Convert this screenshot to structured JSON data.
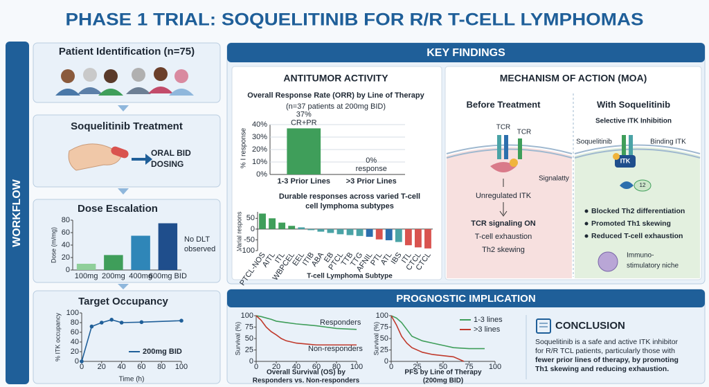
{
  "title": "PHASE 1 TRIAL: SOQUELITINIB FOR R/R T-CELL LYMPHOMAS",
  "workflow_label": "WORKFLOW",
  "patient_step": "Patient Identification (n=75)",
  "treatment_step": {
    "title": "Soquelitinib Treatment",
    "note_lines": [
      "ORAL BID",
      "DOSING"
    ]
  },
  "key_findings_header": "KEY FINDINGS",
  "antitumor_header": "ANTITUMOR ACTIVITY",
  "moa": {
    "header": "MECHANISM OF ACTION (MOA)",
    "before": {
      "title": "Before Treatment",
      "receptor_labels": [
        "TCR",
        "TCR"
      ],
      "signal": "Signalatty",
      "itk": "Unregulated ITK",
      "effects": [
        "TCR signaling ON",
        "T-cell exhaustion",
        "Th2 skewing"
      ]
    },
    "after": {
      "title": "With Soquelitinib",
      "subtitle": "Selective ITK Inhibition",
      "drug": "Soquelitinib",
      "binding": "Binding ITK",
      "itk": "ITK",
      "fragment": "12",
      "effects": [
        "Blocked Th2 differentiation",
        "Promoted Th1 skewing",
        "Reduced T-cell exhaustion"
      ],
      "niche_lines": [
        "Immuno-",
        "stimulatory niche"
      ]
    }
  },
  "prognostic_header": "PROGNOSTIC IMPLICATION",
  "conclusion": {
    "title": "CONCLUSION",
    "lines": [
      "Soquelitinib is a safe and active ITK inhibitor",
      "for R/R TCL patients, particularly those with"
    ],
    "emphasis_lines": [
      "fewer prior lines of therapy, by promoting",
      "Th1 skewing and reducing exhaustion."
    ]
  },
  "chart_data": [
    {
      "type": "bar",
      "title": "Dose Escalation",
      "y_label": "Dose (m/mg)",
      "categories": [
        "100mg",
        "200mg",
        "400mg",
        "600mg BID"
      ],
      "values": [
        10,
        24,
        55,
        75
      ],
      "colors": [
        "#8fcf9a",
        "#3f9e5a",
        "#2f86b8",
        "#1f4e8c"
      ],
      "ylim": [
        0,
        80
      ],
      "yticks": [
        0,
        20,
        40,
        60,
        80
      ],
      "grid": false,
      "annotation_lines": [
        "No DLT",
        "observed"
      ]
    },
    {
      "type": "line",
      "title": "Target Occupancy",
      "y_label": "% ITK occupancy",
      "x_label": "Time (h)",
      "x": [
        0,
        10,
        20,
        30,
        40,
        60,
        100
      ],
      "series": [
        {
          "name": "200mg BID",
          "color": "#1f5f99",
          "values": [
            0,
            72,
            80,
            86,
            80,
            81,
            84
          ]
        }
      ],
      "xlim": [
        0,
        100
      ],
      "xticks": [
        0,
        20,
        40,
        60,
        80,
        100
      ],
      "ylim": [
        0,
        100
      ],
      "yticks": [
        0,
        20,
        40,
        60,
        80,
        100
      ],
      "grid": false,
      "markers": true
    },
    {
      "type": "bar",
      "title": "Overall Response Rate (ORR) by Line of Therapy",
      "subtitle": "(n=37 patients at 200mg BID)",
      "y_label": "% I response",
      "categories": [
        "1-3 Prior Lines",
        ">3 Prior Lines"
      ],
      "values": [
        37,
        0
      ],
      "value_labels": [
        "37%",
        "0%"
      ],
      "value_notes": [
        "CR+PR",
        "response"
      ],
      "color": "#3f9e5a",
      "ylim": [
        0,
        40
      ],
      "yticks": [
        {
          "value": 0,
          "label": "0%"
        },
        {
          "value": 10,
          "label": "10%"
        },
        {
          "value": 20,
          "label": "20%"
        },
        {
          "value": 30,
          "label": "30%"
        },
        {
          "value": 40,
          "label": "40%"
        }
      ],
      "grid": true
    },
    {
      "type": "bar",
      "title_lines": [
        "Durable responses across varied T-cell",
        "cell lymphoma subtypes"
      ],
      "y_label": "Varial respons",
      "x_label": "T-cell Lymphoma Subtype",
      "categories": [
        "PTCL-NOS",
        "AITL",
        "ITL",
        "WBPCEL",
        "EEL",
        "ITIB",
        "ABA",
        "EB",
        "PTCL",
        "TTB",
        "TTG",
        "AFNIL",
        "PTL",
        "ATL",
        "IBS",
        "ITL",
        "CTCL",
        "CTCL"
      ],
      "values": [
        72,
        50,
        30,
        15,
        8,
        -5,
        -12,
        -18,
        -24,
        -28,
        -32,
        -36,
        -48,
        -52,
        -60,
        -75,
        -85,
        -90
      ],
      "colors": [
        "#3f9e5a",
        "#3f9e5a",
        "#3f9e5a",
        "#3f9e5a",
        "#4aa3a6",
        "#4aa3a6",
        "#4aa3a6",
        "#4aa3a6",
        "#4aa3a6",
        "#4aa3a6",
        "#4aa3a6",
        "#2c6fad",
        "#d9534f",
        "#2c6fad",
        "#4aa3a6",
        "#d9534f",
        "#d9534f",
        "#d9534f"
      ],
      "ylim": [
        -100,
        80
      ],
      "yticks": [
        -100,
        -50,
        0,
        50
      ],
      "grid": false
    },
    {
      "type": "line",
      "title_lines": [
        "Overall Survival (OS) by",
        "Responders vs. Non-responders"
      ],
      "y_label": "Survival (%)",
      "series": [
        {
          "name": "Responders",
          "color": "#3f9e5a",
          "x": [
            0,
            5,
            10,
            15,
            20,
            30,
            40,
            50,
            60,
            70,
            80,
            100
          ],
          "values": [
            100,
            98,
            95,
            92,
            88,
            85,
            82,
            80,
            78,
            75,
            72,
            70
          ]
        },
        {
          "name": "Non-responders",
          "color": "#c0392b",
          "x": [
            0,
            5,
            10,
            15,
            20,
            25,
            30,
            40,
            50,
            60,
            70,
            100
          ],
          "values": [
            100,
            90,
            75,
            65,
            58,
            50,
            45,
            40,
            38,
            36,
            36,
            36
          ]
        }
      ],
      "xlim": [
        0,
        100
      ],
      "xticks": [
        0,
        20,
        40,
        60,
        80,
        100
      ],
      "ylim": [
        0,
        100
      ],
      "yticks": [
        0,
        25,
        50,
        75,
        100
      ],
      "grid": false
    },
    {
      "type": "line",
      "title_lines": [
        "PFS by Line of Therapy",
        "(200mg BID)"
      ],
      "y_label": "Survival (%)",
      "series": [
        {
          "name": "1-3 lines",
          "color": "#3f9e5a",
          "x": [
            0,
            5,
            10,
            15,
            20,
            30,
            40,
            50,
            60,
            75,
            90
          ],
          "values": [
            100,
            95,
            85,
            70,
            55,
            45,
            40,
            35,
            30,
            28,
            28
          ]
        },
        {
          "name": ">3 lines",
          "color": "#c0392b",
          "x": [
            0,
            5,
            10,
            15,
            20,
            30,
            40,
            60,
            70
          ],
          "values": [
            100,
            80,
            55,
            40,
            30,
            20,
            15,
            10,
            0
          ]
        }
      ],
      "xlim": [
        0,
        100
      ],
      "xticks": [
        0,
        25,
        50,
        75,
        100
      ],
      "ylim": [
        0,
        100
      ],
      "yticks": [
        0,
        25,
        50,
        75,
        100
      ],
      "grid": false
    }
  ]
}
